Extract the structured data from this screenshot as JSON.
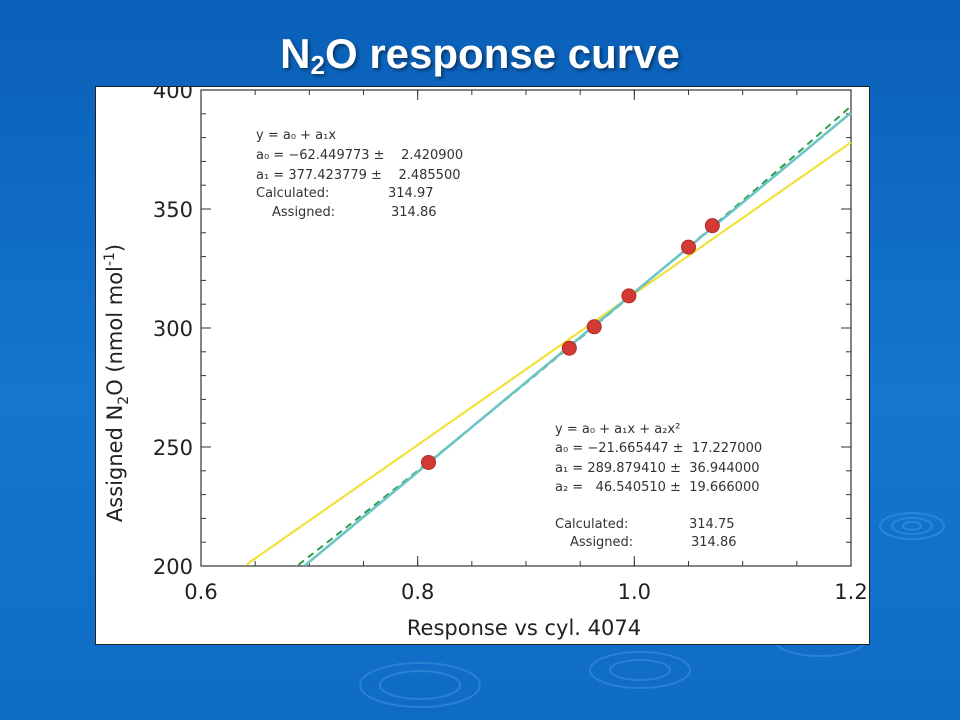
{
  "slide": {
    "title_main": "N",
    "title_sub": "2",
    "title_rest": "O response curve"
  },
  "colors": {
    "background": "#0a5fb8",
    "linear_fit": "#6cc4c4",
    "quadratic_fit": "#2e9e4a",
    "yellow_line": "#f0e23a",
    "points": "#d43a34"
  },
  "chart_data": {
    "type": "scatter",
    "xlabel": "Response vs cyl. 4074",
    "ylabel_parts": [
      "Assigned N",
      "2",
      "O (nmol mol",
      "-1",
      ")"
    ],
    "xlim": [
      0.6,
      1.2
    ],
    "ylim": [
      200,
      400
    ],
    "xticks": [
      "0.6",
      "0.8",
      "1.0",
      "1.2"
    ],
    "yticks": [
      "200",
      "250",
      "300",
      "350",
      "400"
    ],
    "points": [
      {
        "x": 0.81,
        "y": 243.5
      },
      {
        "x": 0.94,
        "y": 291.5
      },
      {
        "x": 0.963,
        "y": 300.5
      },
      {
        "x": 0.995,
        "y": 313.5
      },
      {
        "x": 1.05,
        "y": 334.0
      },
      {
        "x": 1.072,
        "y": 343.0
      }
    ],
    "linear_fit": {
      "a0": -62.449773,
      "a1": 377.423779
    },
    "quadratic_fit": {
      "a0": -21.665447,
      "a1": 289.87941,
      "a2": 46.54051
    },
    "yellow_line": {
      "x": [
        0.64,
        1.2
      ],
      "y": [
        200,
        378
      ]
    },
    "annotation_linear": {
      "equation": "y = a₀ + a₁x",
      "a0_line": "a₀ = −62.449773 ±    2.420900",
      "a1_line": "a₁ = 377.423779 ±    2.485500",
      "calculated_label": "Calculated:",
      "calculated_value": "314.97",
      "assigned_label": "Assigned:",
      "assigned_value": "314.86"
    },
    "annotation_quadratic": {
      "equation": "y = a₀ + a₁x + a₂x²",
      "a0_line": "a₀ = −21.665447 ±  17.227000",
      "a1_line": "a₁ = 289.879410 ±  36.944000",
      "a2_line": "a₂ =   46.540510 ±  19.666000",
      "calculated_label": "Calculated:",
      "calculated_value": "314.75",
      "assigned_label": "Assigned:",
      "assigned_value": "314.86"
    }
  }
}
